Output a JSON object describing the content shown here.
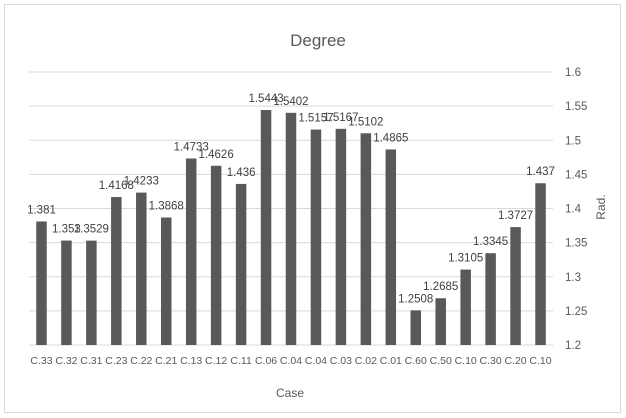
{
  "chart_data": {
    "type": "bar",
    "title": "Degree",
    "xlabel": "Case",
    "ylabel": "Rad.",
    "ylim": [
      1.2,
      1.6
    ],
    "yticks": [
      "1.2",
      "1.25",
      "1.3",
      "1.35",
      "1.4",
      "1.45",
      "1.5",
      "1.55",
      "1.6"
    ],
    "y_axis_side": "right",
    "grid": true,
    "legend": "none",
    "bar_color": "#595959",
    "categories": [
      "C.33",
      "C.32",
      "C.31",
      "C.23",
      "C.22",
      "C.21",
      "C.13",
      "C.12",
      "C.11",
      "C.06",
      "C.04",
      "C.04",
      "C.03",
      "C.02",
      "C.01",
      "C.60",
      "C.50",
      "C.10",
      "C.30",
      "C.20",
      "C.10"
    ],
    "values": [
      1.381,
      1.353,
      1.3529,
      1.4168,
      1.4233,
      1.3868,
      1.4733,
      1.4626,
      1.436,
      1.5443,
      1.5402,
      1.5157,
      1.5167,
      1.5102,
      1.4865,
      1.2508,
      1.2685,
      1.3105,
      1.3345,
      1.3727,
      1.437
    ],
    "data_labels": [
      "1.381",
      "1.353",
      "1.3529",
      "1.4168",
      "1.4233",
      "1.3868",
      "1.4733",
      "1.4626",
      "1.436",
      "1.5443",
      "1.5402",
      "1.5157",
      "1.5167",
      "1.5102",
      "1.4865",
      "1.2508",
      "1.2685",
      "1.3105",
      "1.3345",
      "1.3727",
      "1.437"
    ]
  }
}
